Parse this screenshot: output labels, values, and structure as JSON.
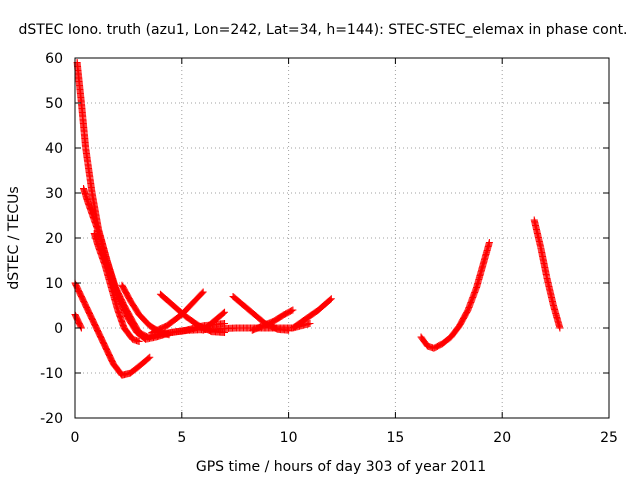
{
  "chart_data": {
    "type": "scatter",
    "title": "dSTEC Iono. truth (azu1, Lon=242, Lat=34, h=144): STEC-STEC_elemax in phase cont.",
    "xlabel": "GPS time / hours of day 303 of year 2011",
    "ylabel": "dSTEC  / TECUs",
    "xlim": [
      0,
      25
    ],
    "ylim": [
      -20,
      60
    ],
    "xticks": [
      "0",
      "5",
      "10",
      "15",
      "20",
      "25"
    ],
    "yticks": [
      "-20",
      "-10",
      "0",
      "10",
      "20",
      "30",
      "40",
      "50",
      "60"
    ],
    "grid": true,
    "marker": "plus",
    "color": "#ff0000",
    "series": [
      {
        "x": [
          0.1,
          0.3,
          0.5,
          0.8,
          1.1,
          1.5,
          1.9,
          2.3,
          2.7,
          3.0,
          3.4,
          3.9,
          4.5,
          5.2,
          6.0,
          7.0
        ],
        "y": [
          59,
          50,
          40,
          30,
          22,
          15,
          9,
          5,
          1.5,
          -1,
          -2,
          -1.5,
          -1,
          -0.5,
          0.5,
          1
        ]
      },
      {
        "x": [
          0.4,
          0.6,
          0.9,
          1.2,
          1.5,
          1.8,
          2.1,
          2.5,
          2.9,
          3.3,
          3.8,
          4.5,
          5.3,
          6.3,
          7.5,
          8.8,
          10.2,
          11.0
        ],
        "y": [
          31,
          28,
          24,
          20,
          15,
          10,
          6,
          2,
          -1,
          -2.5,
          -2,
          -1,
          -0.5,
          -0.3,
          0,
          0,
          0,
          1
        ]
      },
      {
        "x": [
          0.9,
          1.1,
          1.4,
          1.7,
          2.0,
          2.3,
          2.7,
          3.0
        ],
        "y": [
          21,
          18,
          14,
          9,
          4,
          0,
          -2.5,
          -3
        ]
      },
      {
        "x": [
          0.0,
          0.1,
          0.2,
          0.3
        ],
        "y": [
          3,
          2,
          1,
          0
        ]
      },
      {
        "x": [
          0.0,
          0.3,
          0.6,
          1.0,
          1.4,
          1.8,
          2.2,
          2.6,
          3.0,
          3.5
        ],
        "y": [
          10,
          7,
          4,
          0,
          -4,
          -8,
          -10.5,
          -10,
          -8.5,
          -6.5
        ]
      },
      {
        "x": [
          2.2,
          2.6,
          3.0,
          3.5,
          4.0,
          4.4
        ],
        "y": [
          9.5,
          6,
          3,
          0.5,
          -1,
          -1.5
        ]
      },
      {
        "x": [
          4.0,
          4.6,
          5.2,
          5.8,
          6.4,
          7.0
        ],
        "y": [
          7.5,
          5,
          2.5,
          0.5,
          -0.8,
          -1
        ]
      },
      {
        "x": [
          3.6,
          4.3,
          5.0,
          5.6,
          6.0
        ],
        "y": [
          -1,
          0.5,
          3,
          6,
          8
        ]
      },
      {
        "x": [
          6.0,
          6.5,
          7.0
        ],
        "y": [
          -0.5,
          1.5,
          3.5
        ]
      },
      {
        "x": [
          7.4,
          7.9,
          8.4,
          8.9,
          9.5,
          10.0
        ],
        "y": [
          7,
          5,
          3,
          1,
          -0.3,
          -0.5
        ]
      },
      {
        "x": [
          8.3,
          8.8,
          9.3,
          9.8,
          10.2
        ],
        "y": [
          -0.5,
          0.5,
          1.5,
          3,
          4
        ]
      },
      {
        "x": [
          10.2,
          10.8,
          11.4,
          12.0
        ],
        "y": [
          0,
          2,
          4,
          6.5
        ]
      },
      {
        "x": [
          16.2,
          16.5,
          16.8,
          17.2,
          17.6,
          18.0,
          18.4,
          18.8,
          19.1,
          19.4
        ],
        "y": [
          -2,
          -4,
          -4.5,
          -3.5,
          -2,
          0.5,
          4,
          9,
          14,
          19
        ]
      },
      {
        "x": [
          21.5,
          21.8,
          22.1,
          22.4,
          22.7
        ],
        "y": [
          24,
          18,
          11,
          5,
          0
        ]
      }
    ]
  }
}
